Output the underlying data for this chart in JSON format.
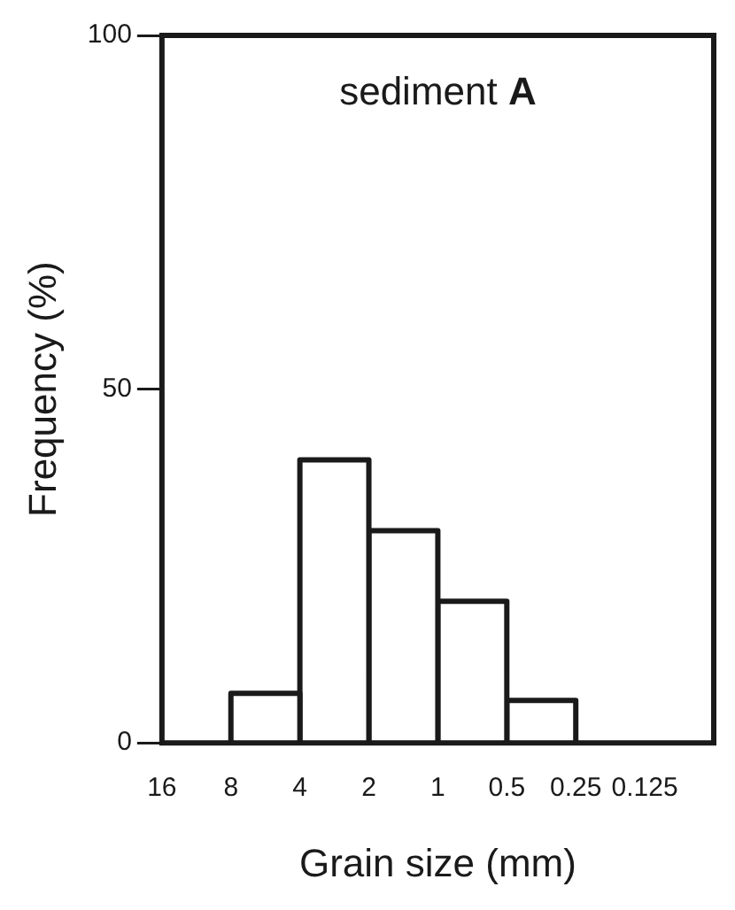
{
  "chart_data": {
    "type": "histogram",
    "title": "sediment A",
    "xlabel": "Grain size (mm)",
    "ylabel": "Frequency (%)",
    "bins": [
      16,
      8,
      4,
      2,
      1,
      0.5,
      0.25,
      0.125
    ],
    "values": [
      0,
      7,
      40,
      30,
      20,
      6,
      0
    ],
    "color": "#ffffff",
    "log": "x",
    "xlim": [
      16,
      0.0625
    ],
    "xticks": [
      16,
      8,
      4,
      2,
      1,
      0.5,
      0.25,
      0.125
    ],
    "ylim": [
      0,
      100
    ],
    "yticks": [
      0,
      50,
      100
    ],
    "grid": false,
    "legend": false
  }
}
